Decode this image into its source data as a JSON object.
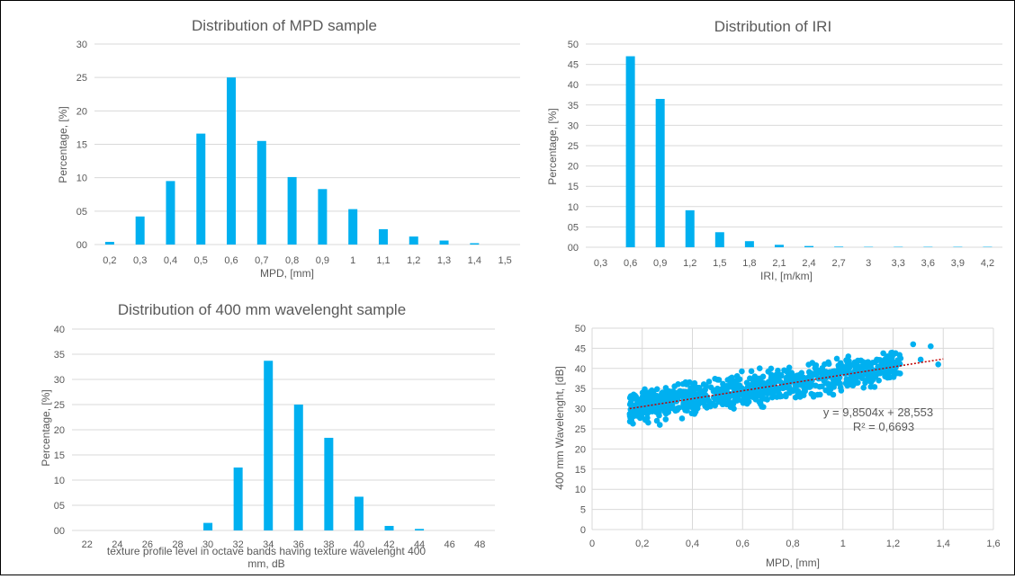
{
  "colors": {
    "bar": "#00b0f0",
    "grid": "#d9d9d9",
    "text": "#595959",
    "trend": "#c00000"
  },
  "chart_data": [
    {
      "type": "bar",
      "title": "Distribution of MPD sample",
      "xlabel": "MPD, [mm]",
      "ylabel": "Percentage, [%]",
      "ylim": [
        0,
        30
      ],
      "yticks": [
        "00",
        "05",
        "10",
        "15",
        "20",
        "25",
        "30"
      ],
      "categories": [
        "0,2",
        "0,3",
        "0,4",
        "0,5",
        "0,6",
        "0,7",
        "0,8",
        "0,9",
        "1",
        "1,1",
        "1,2",
        "1,3",
        "1,4",
        "1,5"
      ],
      "values": [
        0.4,
        4.2,
        9.5,
        16.6,
        25.0,
        15.5,
        10.1,
        8.3,
        5.3,
        2.3,
        1.2,
        0.6,
        0.2,
        0
      ],
      "grid": true
    },
    {
      "type": "bar",
      "title": "Distribution of IRI",
      "xlabel": "IRI, [m/km]",
      "ylabel": "Percentage, [%]",
      "ylim": [
        0,
        50
      ],
      "yticks": [
        "00",
        "05",
        "10",
        "15",
        "20",
        "25",
        "30",
        "35",
        "40",
        "45",
        "50"
      ],
      "categories": [
        "0,3",
        "0,6",
        "0,9",
        "1,2",
        "1,5",
        "1,8",
        "2,1",
        "2,4",
        "2,7",
        "3",
        "3,3",
        "3,6",
        "3,9",
        "4,2"
      ],
      "values": [
        0,
        47.0,
        36.5,
        9.1,
        3.7,
        1.5,
        0.6,
        0.3,
        0.15,
        0.1,
        0.1,
        0.1,
        0.1,
        0.1
      ],
      "grid": true
    },
    {
      "type": "bar",
      "title": "Distribution of 400 mm wavelenght sample",
      "xlabel": "texture profile level in octave bands having texture wavelenght 400\nmm, dB",
      "ylabel": "Percentage, [%]",
      "ylim": [
        0,
        40
      ],
      "yticks": [
        "00",
        "05",
        "10",
        "15",
        "20",
        "25",
        "30",
        "35",
        "40"
      ],
      "categories": [
        "22",
        "24",
        "26",
        "28",
        "30",
        "32",
        "34",
        "36",
        "38",
        "40",
        "42",
        "44",
        "46",
        "48"
      ],
      "values": [
        0,
        0,
        0,
        0,
        1.5,
        12.5,
        33.7,
        25.0,
        18.4,
        6.7,
        0.9,
        0.3,
        0,
        0
      ],
      "grid": true
    },
    {
      "type": "scatter",
      "xlabel": "MPD, [mm]",
      "ylabel": "400 mm Wavelenght, [dB]",
      "xlim": [
        0,
        1.6
      ],
      "ylim": [
        0,
        50
      ],
      "xticks": [
        "0",
        "0,2",
        "0,4",
        "0,6",
        "0,8",
        "1",
        "1,2",
        "1,4",
        "1,6"
      ],
      "yticks": [
        "0",
        "5",
        "10",
        "15",
        "20",
        "25",
        "30",
        "35",
        "40",
        "45",
        "50"
      ],
      "trendline": {
        "slope": 9.8504,
        "intercept": 28.553,
        "x_range": [
          0.15,
          1.4
        ]
      },
      "equation": "y = 9,8504x + 28,553",
      "r_squared": "R² = 0,6693",
      "points_summary": {
        "count_approx": 900,
        "x_range": [
          0.15,
          1.38
        ],
        "residual_spread_db": 2.5
      },
      "outliers": [
        [
          0.15,
          28.7
        ],
        [
          0.27,
          26.0
        ],
        [
          1.21,
          43.8
        ],
        [
          1.23,
          42.5
        ],
        [
          1.28,
          46.0
        ],
        [
          1.31,
          42.2
        ],
        [
          1.35,
          45.5
        ],
        [
          1.38,
          41.0
        ],
        [
          1.1,
          41.6
        ],
        [
          1.17,
          42.4
        ]
      ],
      "grid": true
    }
  ]
}
